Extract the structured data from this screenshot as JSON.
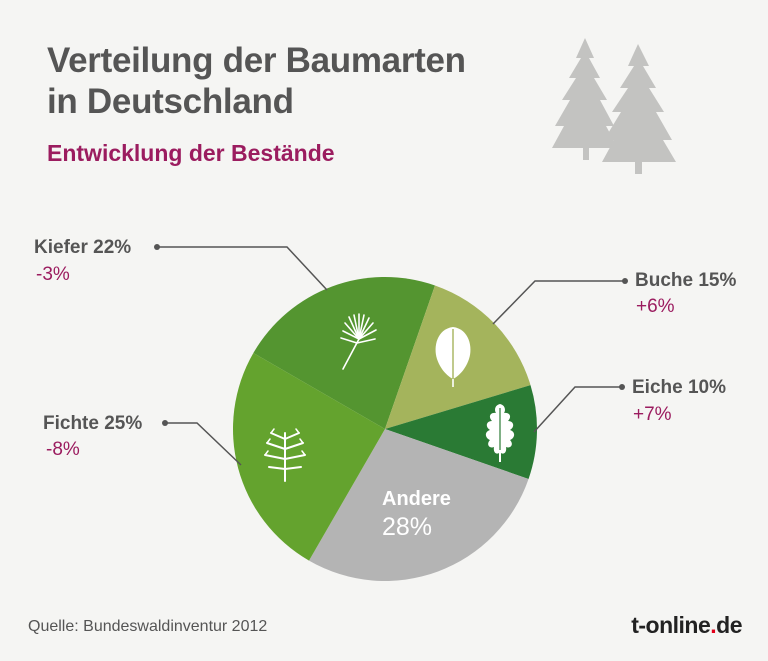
{
  "header": {
    "title_line1": "Verteilung der Baumarten",
    "title_line2": "in Deutschland",
    "subtitle": "Entwicklung der Bestände"
  },
  "footer": {
    "source": "Quelle: Bundeswaldinventur 2012",
    "logo_main": "t-online",
    "logo_dot": ".",
    "logo_tld": "de"
  },
  "icons": [
    "tree-icon",
    "pine-branch-icon",
    "beech-leaf-icon",
    "oak-leaf-icon",
    "spruce-branch-icon"
  ],
  "chart_data": {
    "type": "pie",
    "title": "Verteilung der Baumarten in Deutschland",
    "subtitle": "Entwicklung der Bestände",
    "slices": [
      {
        "name": "Kiefer",
        "value": 22,
        "value_label": "22%",
        "change": "-3%",
        "color": "#549530",
        "icon": "pine-branch-icon"
      },
      {
        "name": "Buche",
        "value": 15,
        "value_label": "15%",
        "change": "+6%",
        "color": "#a4b45c",
        "icon": "beech-leaf-icon"
      },
      {
        "name": "Eiche",
        "value": 10,
        "value_label": "10%",
        "change": "+7%",
        "color": "#2a7a34",
        "icon": "oak-leaf-icon"
      },
      {
        "name": "Andere",
        "value": 28,
        "value_label": "28%",
        "change": "",
        "color": "#b4b4b4",
        "icon": ""
      },
      {
        "name": "Fichte",
        "value": 25,
        "value_label": "25%",
        "change": "-8%",
        "color": "#64a32e",
        "icon": "spruce-branch-icon"
      }
    ],
    "legend": "none",
    "labels": "outside with leader lines"
  }
}
